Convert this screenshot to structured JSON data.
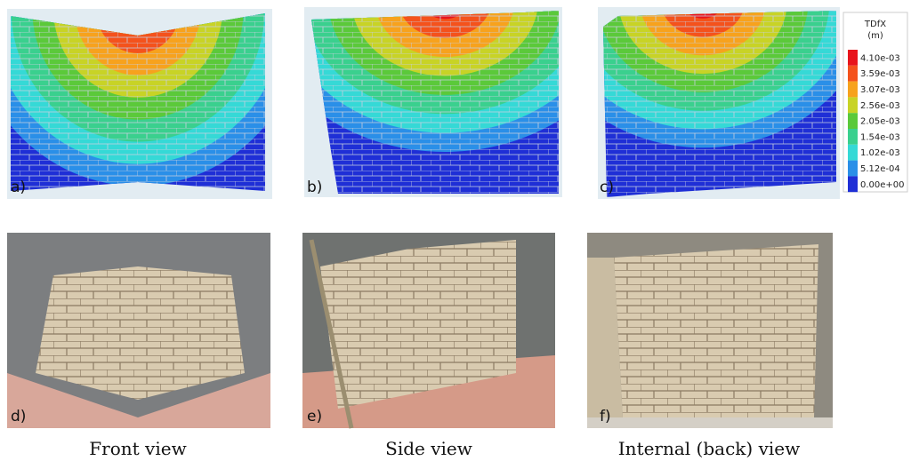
{
  "panels": {
    "top": [
      {
        "label": "a)"
      },
      {
        "label": "b)"
      },
      {
        "label": "c)"
      }
    ],
    "bottom": [
      {
        "label": "d)"
      },
      {
        "label": "e)"
      },
      {
        "label": "f)"
      }
    ]
  },
  "captions": [
    "Front view",
    "Side view",
    "Internal (back) view"
  ],
  "legend": {
    "title": "TDfX",
    "unit": "(m)",
    "entries": [
      {
        "label": "4.10e-03",
        "color": "#e8141b"
      },
      {
        "label": "3.59e-03",
        "color": "#f4521c"
      },
      {
        "label": "3.07e-03",
        "color": "#f7a21d"
      },
      {
        "label": "2.56e-03",
        "color": "#c8d326"
      },
      {
        "label": "2.05e-03",
        "color": "#5bc93a"
      },
      {
        "label": "1.54e-03",
        "color": "#3ad08e"
      },
      {
        "label": "1.02e-03",
        "color": "#35d9d6"
      },
      {
        "label": "5.12e-04",
        "color": "#2a8fe8"
      },
      {
        "label": "0.00e+00",
        "color": "#1f2fd6"
      }
    ]
  }
}
